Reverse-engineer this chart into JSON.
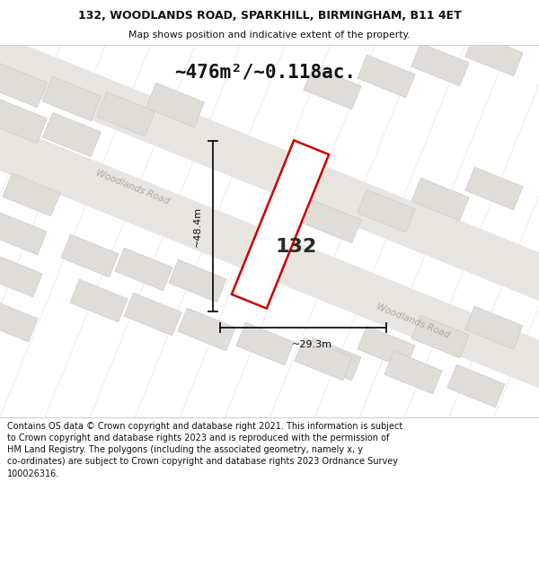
{
  "title_line1": "132, WOODLANDS ROAD, SPARKHILL, BIRMINGHAM, B11 4ET",
  "title_line2": "Map shows position and indicative extent of the property.",
  "area_text": "~476m²/~0.118ac.",
  "property_label": "132",
  "dim_height": "~48.4m",
  "dim_width": "~29.3m",
  "road_label1": "Woodlands Road",
  "road_label2": "Woodlands Road",
  "footer_text": "Contains OS data © Crown copyright and database right 2021. This information is subject to Crown copyright and database rights 2023 and is reproduced with the permission of HM Land Registry. The polygons (including the associated geometry, namely x, y co-ordinates) are subject to Crown copyright and database rights 2023 Ordnance Survey 100026316.",
  "bg_color": "#f2eeea",
  "block_color": "#e0dcd8",
  "road_band_color": "#e8e4e0",
  "property_fill": "#ffffff",
  "property_edge": "#cc0000",
  "grid_line_color_main": "#e8b8b8",
  "grid_line_color_cross": "#d4ccc8",
  "road_text_color": "#b0a8a4",
  "dim_line_color": "#111111",
  "title_color": "#111111",
  "footer_text_color": "#111111",
  "area_text_color": "#111111"
}
